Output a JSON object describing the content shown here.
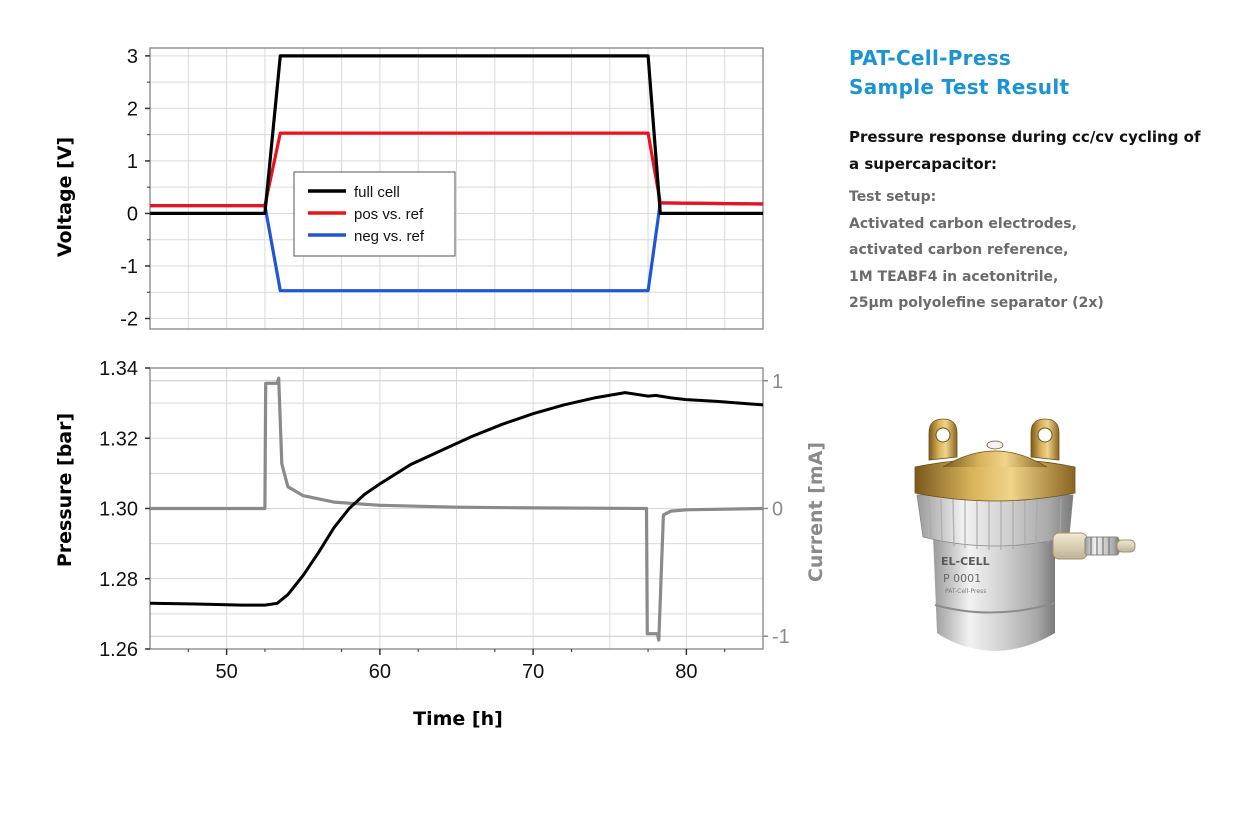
{
  "panel": {
    "title_line1": "PAT-Cell-Press",
    "title_line2": "Sample Test Result",
    "subheading": "Pressure response during cc/cv cycling of a supercapacitor:",
    "setup_lines": [
      "Test setup:",
      "Activated carbon electrodes,",
      "activated carbon reference,",
      "1M TEABF4 in acetonitrile,",
      "25µm polyolefine separator (2x)"
    ]
  },
  "device": {
    "brand": "EL-CELL",
    "serial": "P 0001",
    "model": "PAT-Cell-Press"
  },
  "colors": {
    "full_cell": "#000000",
    "pos": "#e8131b",
    "neg": "#1f55d6",
    "pressure": "#000000",
    "current": "#8a8a8a",
    "title": "#1c94d2"
  },
  "chart_data": [
    {
      "type": "line",
      "xlim": [
        45,
        85
      ],
      "ylim": [
        -2.2,
        3.15
      ],
      "ylabel": "Voltage [V]",
      "yticks": [
        "3",
        "2",
        "1",
        "0",
        "-1",
        "-2"
      ],
      "ytick_values": [
        3,
        2,
        1,
        0,
        -1,
        -2
      ],
      "grid": true,
      "legend_position": "center-left",
      "series": [
        {
          "name": "full cell",
          "color": "#000000",
          "x": [
            45,
            52.5,
            53.5,
            77.5,
            78.3,
            85
          ],
          "y": [
            0.0,
            0.0,
            3.0,
            3.0,
            0.0,
            0.0
          ]
        },
        {
          "name": "pos vs. ref",
          "color": "#e8131b",
          "x": [
            45,
            52.5,
            53.5,
            77.5,
            78.3,
            85
          ],
          "y": [
            0.15,
            0.15,
            1.53,
            1.53,
            0.2,
            0.18
          ]
        },
        {
          "name": "neg vs. ref",
          "color": "#1f55d6",
          "x": [
            45,
            52.5,
            53.5,
            77.5,
            78.3,
            85
          ],
          "y": [
            0.15,
            0.15,
            -1.47,
            -1.47,
            0.2,
            0.18
          ]
        }
      ]
    },
    {
      "type": "line",
      "xlim": [
        45,
        85
      ],
      "xticks": [
        50,
        60,
        70,
        80
      ],
      "xlabel": "Time [h]",
      "ylim": [
        1.26,
        1.34
      ],
      "ylabel": "Pressure [bar]",
      "yticks": [
        "1.34",
        "1.32",
        "1.30",
        "1.28",
        "1.26"
      ],
      "ytick_values": [
        1.34,
        1.32,
        1.3,
        1.28,
        1.26
      ],
      "y2lim": [
        -1.1,
        1.1
      ],
      "y2label": "Current [mA]",
      "y2ticks": [
        "1",
        "0",
        "-1"
      ],
      "y2tick_values": [
        1,
        0,
        -1
      ],
      "grid": true,
      "series": [
        {
          "axis": "left",
          "color": "#000000",
          "x": [
            45,
            48,
            51,
            52.5,
            53.3,
            54,
            55,
            56,
            57,
            58,
            59,
            60,
            62,
            64,
            66,
            68,
            70,
            72,
            74,
            76,
            77.5,
            78,
            79,
            80,
            82,
            84,
            85
          ],
          "y": [
            1.273,
            1.2728,
            1.2725,
            1.2725,
            1.273,
            1.2755,
            1.281,
            1.2875,
            1.2945,
            1.3,
            1.304,
            1.307,
            1.3125,
            1.3165,
            1.3205,
            1.324,
            1.327,
            1.3295,
            1.3315,
            1.333,
            1.332,
            1.3322,
            1.3315,
            1.331,
            1.3305,
            1.3298,
            1.3295
          ]
        },
        {
          "axis": "right",
          "color": "#8a8a8a",
          "x": [
            45,
            52.5,
            52.55,
            53.3,
            53.4,
            53.6,
            54,
            55,
            57,
            60,
            65,
            70,
            77.4,
            77.45,
            78.1,
            78.2,
            78.5,
            79,
            80,
            85
          ],
          "y": [
            0.0,
            0.0,
            0.98,
            0.98,
            1.02,
            0.35,
            0.17,
            0.1,
            0.05,
            0.025,
            0.01,
            0.005,
            0.0,
            -0.98,
            -0.98,
            -1.03,
            -0.05,
            -0.02,
            -0.01,
            0.0
          ]
        }
      ]
    }
  ]
}
